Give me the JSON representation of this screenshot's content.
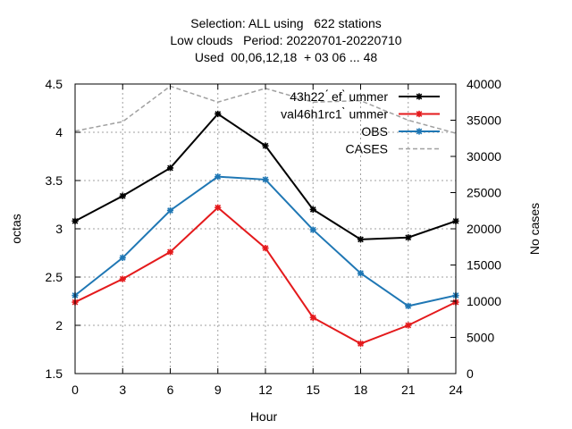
{
  "title_lines": [
    "Selection: ALL using   622 stations",
    "Low clouds   Period: 20220701-20220710",
    "Used  00,06,12,18  + 03 06 ... 48"
  ],
  "chart_data": {
    "type": "line",
    "xlabel": "Hour",
    "ylabel": "octas",
    "y2label": "No cases",
    "x": [
      0,
      3,
      6,
      9,
      12,
      15,
      18,
      21,
      24
    ],
    "xlim": [
      0,
      24
    ],
    "ylim": [
      1.5,
      4.5
    ],
    "y2lim": [
      0,
      40000
    ],
    "xticks": [
      "0",
      "3",
      "6",
      "9",
      "12",
      "15",
      "18",
      "21",
      "24"
    ],
    "yticks": [
      "1.5",
      "2",
      "2.5",
      "3",
      "3.5",
      "4",
      "4.5"
    ],
    "y2ticks": [
      "0",
      "5000",
      "10000",
      "15000",
      "20000",
      "25000",
      "30000",
      "35000",
      "40000"
    ],
    "grid": true,
    "legend_position": "top-right",
    "series": [
      {
        "name": "43h22_rc1_summer",
        "legend_text": "43h22 ́ ef ̀ ummer",
        "color": "#000000",
        "axis": "y",
        "values": [
          3.08,
          3.34,
          3.63,
          4.19,
          3.86,
          3.2,
          2.89,
          2.91,
          3.08
        ]
      },
      {
        "name": "val46h1rc1_summer",
        "legend_text": "val46h1rc1 ̀ ummer",
        "color": "#e41a1c",
        "axis": "y",
        "values": [
          2.24,
          2.48,
          2.76,
          3.22,
          2.8,
          2.08,
          1.81,
          2.0,
          2.24
        ]
      },
      {
        "name": "OBS",
        "legend_text": "OBS",
        "color": "#1f77b4",
        "axis": "y",
        "values": [
          2.31,
          2.7,
          3.19,
          3.54,
          3.51,
          2.99,
          2.54,
          2.2,
          2.31
        ]
      },
      {
        "name": "CASES",
        "legend_text": "CASES",
        "color": "#a0a0a0",
        "axis": "y2",
        "dashed": true,
        "values": [
          33500,
          34800,
          39700,
          37500,
          39400,
          37500,
          37700,
          35000,
          33200
        ]
      }
    ]
  }
}
